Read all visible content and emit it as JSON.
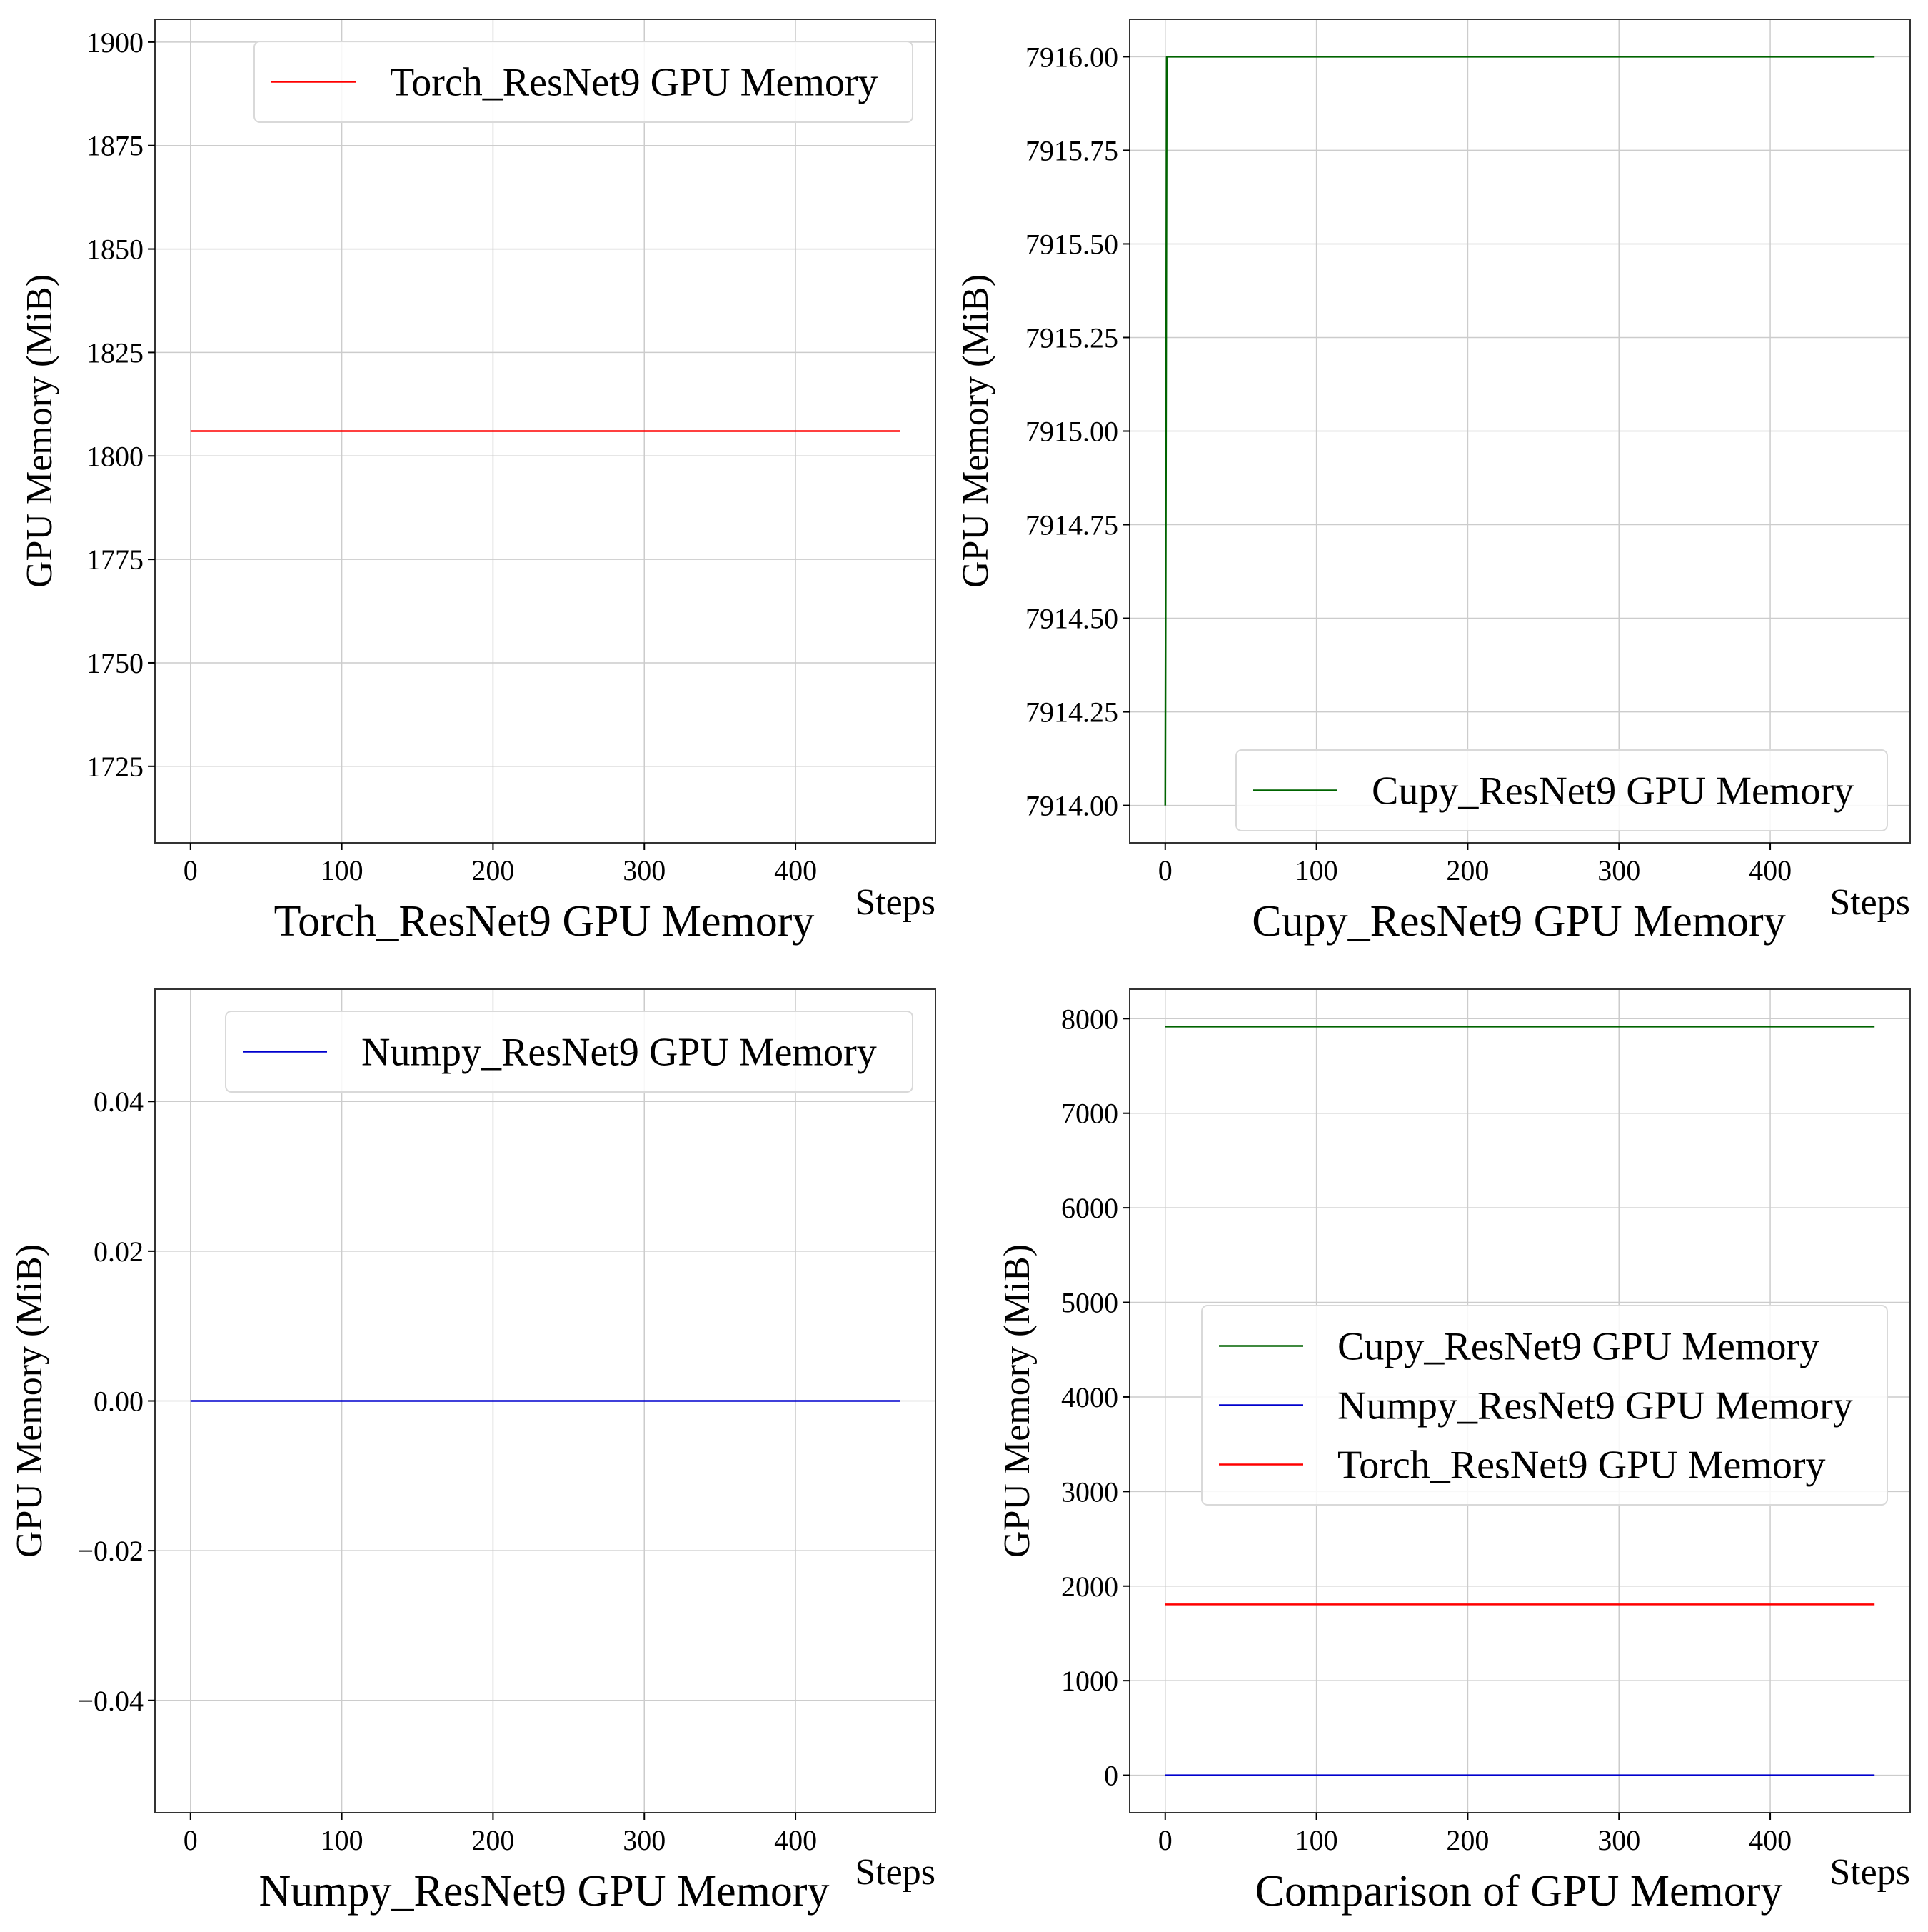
{
  "colors": {
    "torch": "#ff0000",
    "cupy": "#006400",
    "numpy": "#0000cd",
    "grid": "#cccccc",
    "frame": "#333333",
    "legend_border": "#d9d9d9"
  },
  "chart_data": [
    {
      "type": "line",
      "title": "Torch_ResNet9 GPU Memory",
      "xlabel": "Steps",
      "ylabel": "GPU Memory (MiB)",
      "xlim": [
        -23.5,
        492.5
      ],
      "ylim": [
        1706.5,
        1905.5
      ],
      "xticks": [
        0,
        100,
        200,
        300,
        400
      ],
      "xtick_labels": [
        "0",
        "100",
        "200",
        "300",
        "400"
      ],
      "yticks": [
        1725,
        1750,
        1775,
        1800,
        1825,
        1850,
        1875,
        1900
      ],
      "ytick_labels": [
        "1725",
        "1750",
        "1775",
        "1800",
        "1825",
        "1850",
        "1875",
        "1900"
      ],
      "grid": true,
      "legend_position": "upper right",
      "series": [
        {
          "name": "Torch_ResNet9 GPU Memory",
          "color_key": "torch",
          "x": [
            0,
            469
          ],
          "y": [
            1806,
            1806
          ]
        }
      ]
    },
    {
      "type": "line",
      "title": "Cupy_ResNet9 GPU Memory",
      "xlabel": "Steps",
      "ylabel": "GPU Memory (MiB)",
      "xlim": [
        -23.5,
        492.5
      ],
      "ylim": [
        7913.9,
        7916.1
      ],
      "xticks": [
        0,
        100,
        200,
        300,
        400
      ],
      "xtick_labels": [
        "0",
        "100",
        "200",
        "300",
        "400"
      ],
      "yticks": [
        7914.0,
        7914.25,
        7914.5,
        7914.75,
        7915.0,
        7915.25,
        7915.5,
        7915.75,
        7916.0
      ],
      "ytick_labels": [
        "7914.00",
        "7914.25",
        "7914.50",
        "7914.75",
        "7915.00",
        "7915.25",
        "7915.50",
        "7915.75",
        "7916.00"
      ],
      "grid": true,
      "legend_position": "lower right",
      "series": [
        {
          "name": "Cupy_ResNet9 GPU Memory",
          "color_key": "cupy",
          "x": [
            0,
            1,
            469
          ],
          "y": [
            7914,
            7916,
            7916
          ]
        }
      ]
    },
    {
      "type": "line",
      "title": "Numpy_ResNet9 GPU Memory",
      "xlabel": "Steps",
      "ylabel": "GPU Memory (MiB)",
      "xlim": [
        -23.5,
        492.5
      ],
      "ylim": [
        -0.055,
        0.055
      ],
      "xticks": [
        0,
        100,
        200,
        300,
        400
      ],
      "xtick_labels": [
        "0",
        "100",
        "200",
        "300",
        "400"
      ],
      "yticks": [
        -0.04,
        -0.02,
        0.0,
        0.02,
        0.04
      ],
      "ytick_labels": [
        "−0.04",
        "−0.02",
        "0.00",
        "0.02",
        "0.04"
      ],
      "grid": true,
      "legend_position": "upper right",
      "series": [
        {
          "name": "Numpy_ResNet9 GPU Memory",
          "color_key": "numpy",
          "x": [
            0,
            469
          ],
          "y": [
            0,
            0
          ]
        }
      ]
    },
    {
      "type": "line",
      "title": "Comparison of GPU Memory",
      "xlabel": "Steps",
      "ylabel": "GPU Memory (MiB)",
      "xlim": [
        -23.5,
        492.5
      ],
      "ylim": [
        -396,
        8312
      ],
      "xticks": [
        0,
        100,
        200,
        300,
        400
      ],
      "xtick_labels": [
        "0",
        "100",
        "200",
        "300",
        "400"
      ],
      "yticks": [
        0,
        1000,
        2000,
        3000,
        4000,
        5000,
        6000,
        7000,
        8000
      ],
      "ytick_labels": [
        "0",
        "1000",
        "2000",
        "3000",
        "4000",
        "5000",
        "6000",
        "7000",
        "8000"
      ],
      "grid": true,
      "legend_position": "center right",
      "series": [
        {
          "name": "Cupy_ResNet9 GPU Memory",
          "color_key": "cupy",
          "x": [
            0,
            469
          ],
          "y": [
            7916,
            7916
          ]
        },
        {
          "name": "Numpy_ResNet9 GPU Memory",
          "color_key": "numpy",
          "x": [
            0,
            469
          ],
          "y": [
            0,
            0
          ]
        },
        {
          "name": "Torch_ResNet9 GPU Memory",
          "color_key": "torch",
          "x": [
            0,
            469
          ],
          "y": [
            1806,
            1806
          ]
        }
      ]
    }
  ]
}
